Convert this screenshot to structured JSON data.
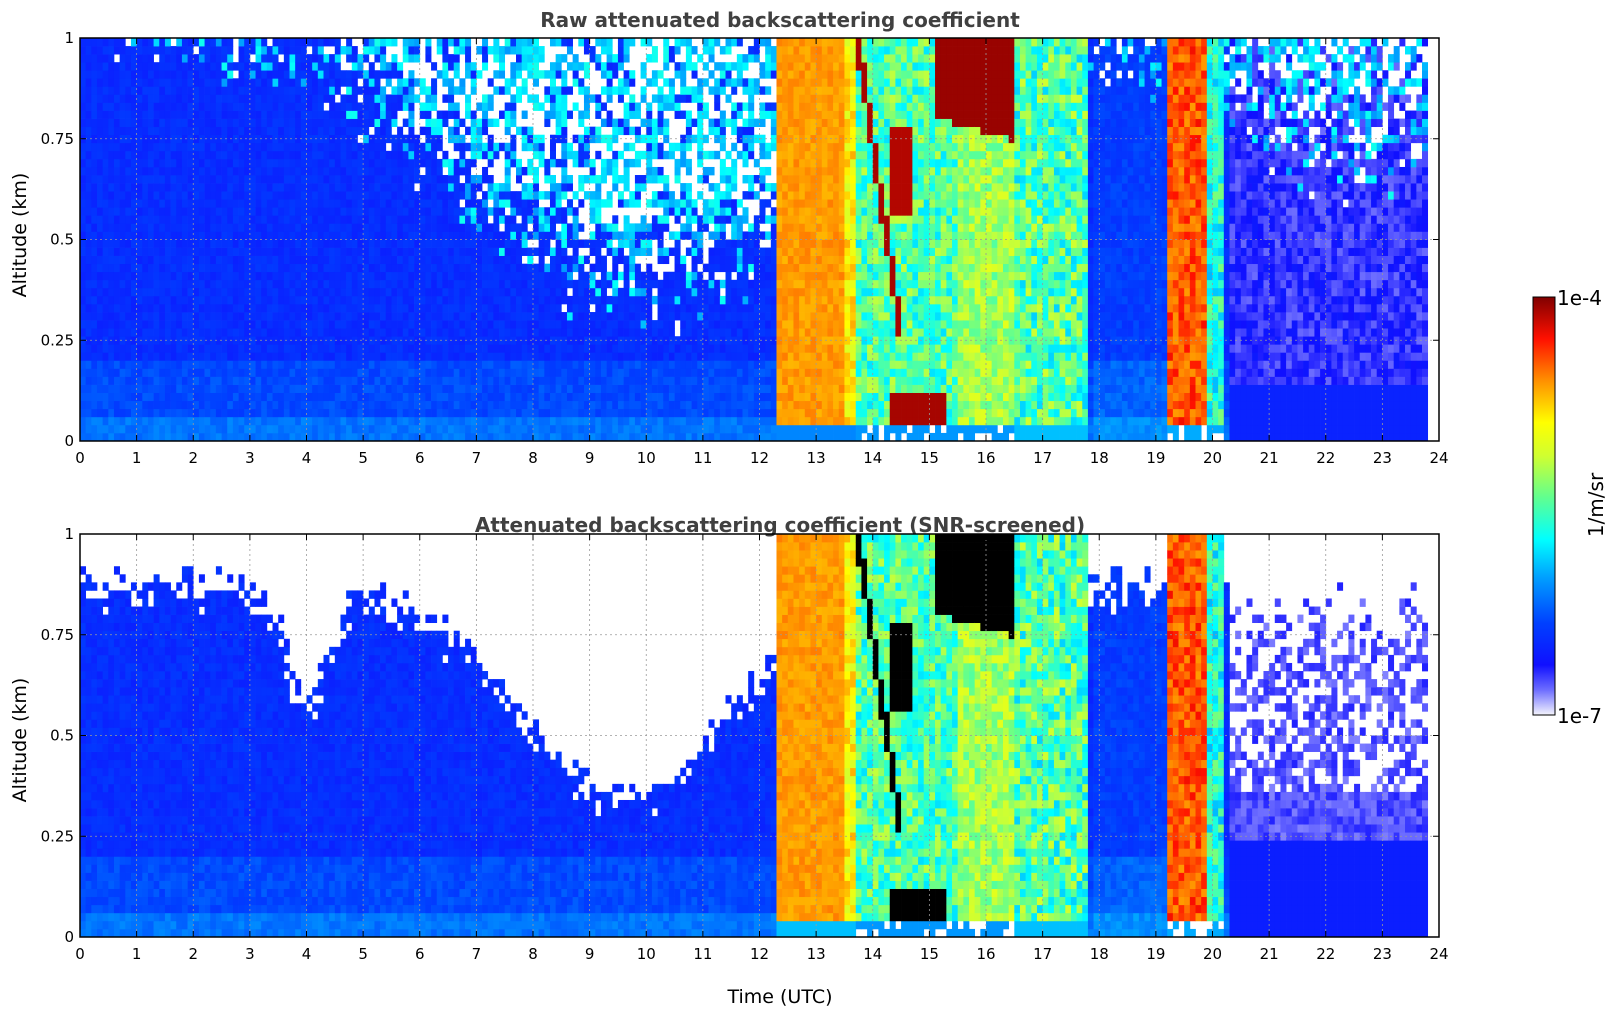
{
  "chart_data": [
    {
      "type": "heatmap",
      "title": "Raw attenuated backscattering coefficient",
      "xlabel": "",
      "ylabel": "Altitude (km)",
      "xlim": [
        0,
        24
      ],
      "ylim": [
        0,
        1
      ],
      "xticks": [
        "0",
        "1",
        "2",
        "3",
        "4",
        "5",
        "6",
        "7",
        "8",
        "9",
        "10",
        "11",
        "12",
        "13",
        "14",
        "15",
        "16",
        "17",
        "18",
        "19",
        "20",
        "21",
        "22",
        "23",
        "24"
      ],
      "yticks": [
        "0",
        "0.25",
        "0.5",
        "0.75",
        "1"
      ],
      "grid": true,
      "screened": false,
      "cells": [
        {
          "t": 6.0,
          "background": "blue, noisy white above 0.5 km"
        },
        {
          "t": 13.0,
          "signal": "orange fog/cloud band 12.3-13.6 UTC"
        },
        {
          "t": 14.8,
          "signal": "dark red cloud layer near 0.1 km"
        },
        {
          "t": 15.8,
          "signal": "dark red cloud layer near 0.9 km"
        },
        {
          "t": 19.6,
          "signal": "orange/red band 19.2-20.2 UTC"
        }
      ]
    },
    {
      "type": "heatmap",
      "title": "Attenuated backscattering coefficient (SNR-screened)",
      "xlabel": "Time (UTC)",
      "ylabel": "Altitude (km)",
      "xlim": [
        0,
        24
      ],
      "ylim": [
        0,
        1
      ],
      "xticks": [
        "0",
        "1",
        "2",
        "3",
        "4",
        "5",
        "6",
        "7",
        "8",
        "9",
        "10",
        "11",
        "12",
        "13",
        "14",
        "15",
        "16",
        "17",
        "18",
        "19",
        "20",
        "21",
        "22",
        "23",
        "24"
      ],
      "yticks": [
        "0",
        "0.25",
        "0.5",
        "0.75",
        "1"
      ],
      "grid": true,
      "screened": true,
      "cells": [
        {
          "t": 9.6,
          "signal": "screened boundary lowest near 0.3 km"
        },
        {
          "t": 14.8,
          "signal": "saturated (black) cloud layer near 0.1 km"
        },
        {
          "t": 15.8,
          "signal": "saturated (black) cloud layer near 0.9 km"
        }
      ]
    }
  ],
  "colorbar": {
    "label": "1/m/sr",
    "max_label": "1e-4",
    "min_label": "1e-7",
    "range": [
      1e-07,
      0.0001
    ],
    "scale": "log",
    "colormap": [
      "#f4f4fc",
      "#3333ff",
      "#0000ff",
      "#0080ff",
      "#00ffff",
      "#80ff80",
      "#ffff00",
      "#ff8000",
      "#ff0000",
      "#800000"
    ]
  }
}
